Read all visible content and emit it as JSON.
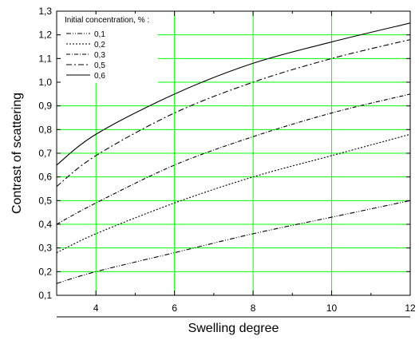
{
  "chart_data": {
    "type": "line",
    "title": "",
    "xlabel": "Swelling degree",
    "ylabel": "Contrast of scattering",
    "xlim": [
      3,
      12
    ],
    "ylim": [
      0.1,
      1.3
    ],
    "x_ticks": [
      "4",
      "6",
      "8",
      "10",
      "12"
    ],
    "y_ticks": [
      "0,1",
      "0,2",
      "0,3",
      "0,4",
      "0,5",
      "0,6",
      "0,7",
      "0,8",
      "0,9",
      "1,0",
      "1,1",
      "1,2",
      "1,3"
    ],
    "grid": true,
    "grid_color": "#00ff00",
    "legend": {
      "title": "Initial concentration, % :",
      "placement": "top-left"
    },
    "x": [
      3,
      4,
      6,
      8,
      10,
      12
    ],
    "series": [
      {
        "name": "0,1",
        "dash": "dash-dot-dot",
        "values": [
          0.15,
          0.2,
          0.28,
          0.36,
          0.43,
          0.5
        ]
      },
      {
        "name": "0,2",
        "dash": "dotted",
        "values": [
          0.28,
          0.36,
          0.49,
          0.6,
          0.69,
          0.78
        ]
      },
      {
        "name": "0,3",
        "dash": "dash-dot-fine",
        "values": [
          0.4,
          0.49,
          0.65,
          0.77,
          0.87,
          0.95
        ]
      },
      {
        "name": "0,5",
        "dash": "dash-dot",
        "values": [
          0.56,
          0.69,
          0.87,
          1.0,
          1.1,
          1.18
        ]
      },
      {
        "name": "0,6",
        "dash": "solid",
        "values": [
          0.65,
          0.78,
          0.95,
          1.08,
          1.17,
          1.25
        ]
      }
    ]
  }
}
